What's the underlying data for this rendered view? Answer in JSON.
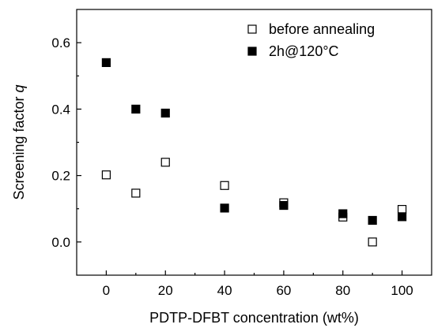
{
  "chart_data": {
    "type": "scatter",
    "xlabel": "PDTP-DFBT concentration (wt%)",
    "ylabel_main": "Screening factor ",
    "ylabel_var": "q",
    "xlim": [
      -10,
      110
    ],
    "ylim": [
      -0.1,
      0.7
    ],
    "xticks": [
      0,
      20,
      40,
      60,
      80,
      100
    ],
    "xtick_labels": [
      "0",
      "20",
      "40",
      "60",
      "80",
      "100"
    ],
    "yticks": [
      0.0,
      0.2,
      0.4,
      0.6
    ],
    "ytick_labels": [
      "0.0",
      "0.2",
      "0.4",
      "0.6"
    ],
    "grid": false,
    "legend_position": "top-right",
    "series": [
      {
        "name": "before annealing",
        "marker": "open-square",
        "color": "#000000",
        "points": [
          [
            0,
            0.202
          ],
          [
            10,
            0.147
          ],
          [
            20,
            0.24
          ],
          [
            40,
            0.17
          ],
          [
            60,
            0.118
          ],
          [
            80,
            0.075
          ],
          [
            90,
            0.0
          ],
          [
            100,
            0.098
          ]
        ]
      },
      {
        "name": "2h@120°C",
        "marker": "filled-square",
        "color": "#000000",
        "points": [
          [
            0,
            0.54
          ],
          [
            10,
            0.4
          ],
          [
            20,
            0.388
          ],
          [
            40,
            0.102
          ],
          [
            60,
            0.11
          ],
          [
            80,
            0.085
          ],
          [
            90,
            0.065
          ],
          [
            100,
            0.076
          ]
        ]
      }
    ]
  }
}
